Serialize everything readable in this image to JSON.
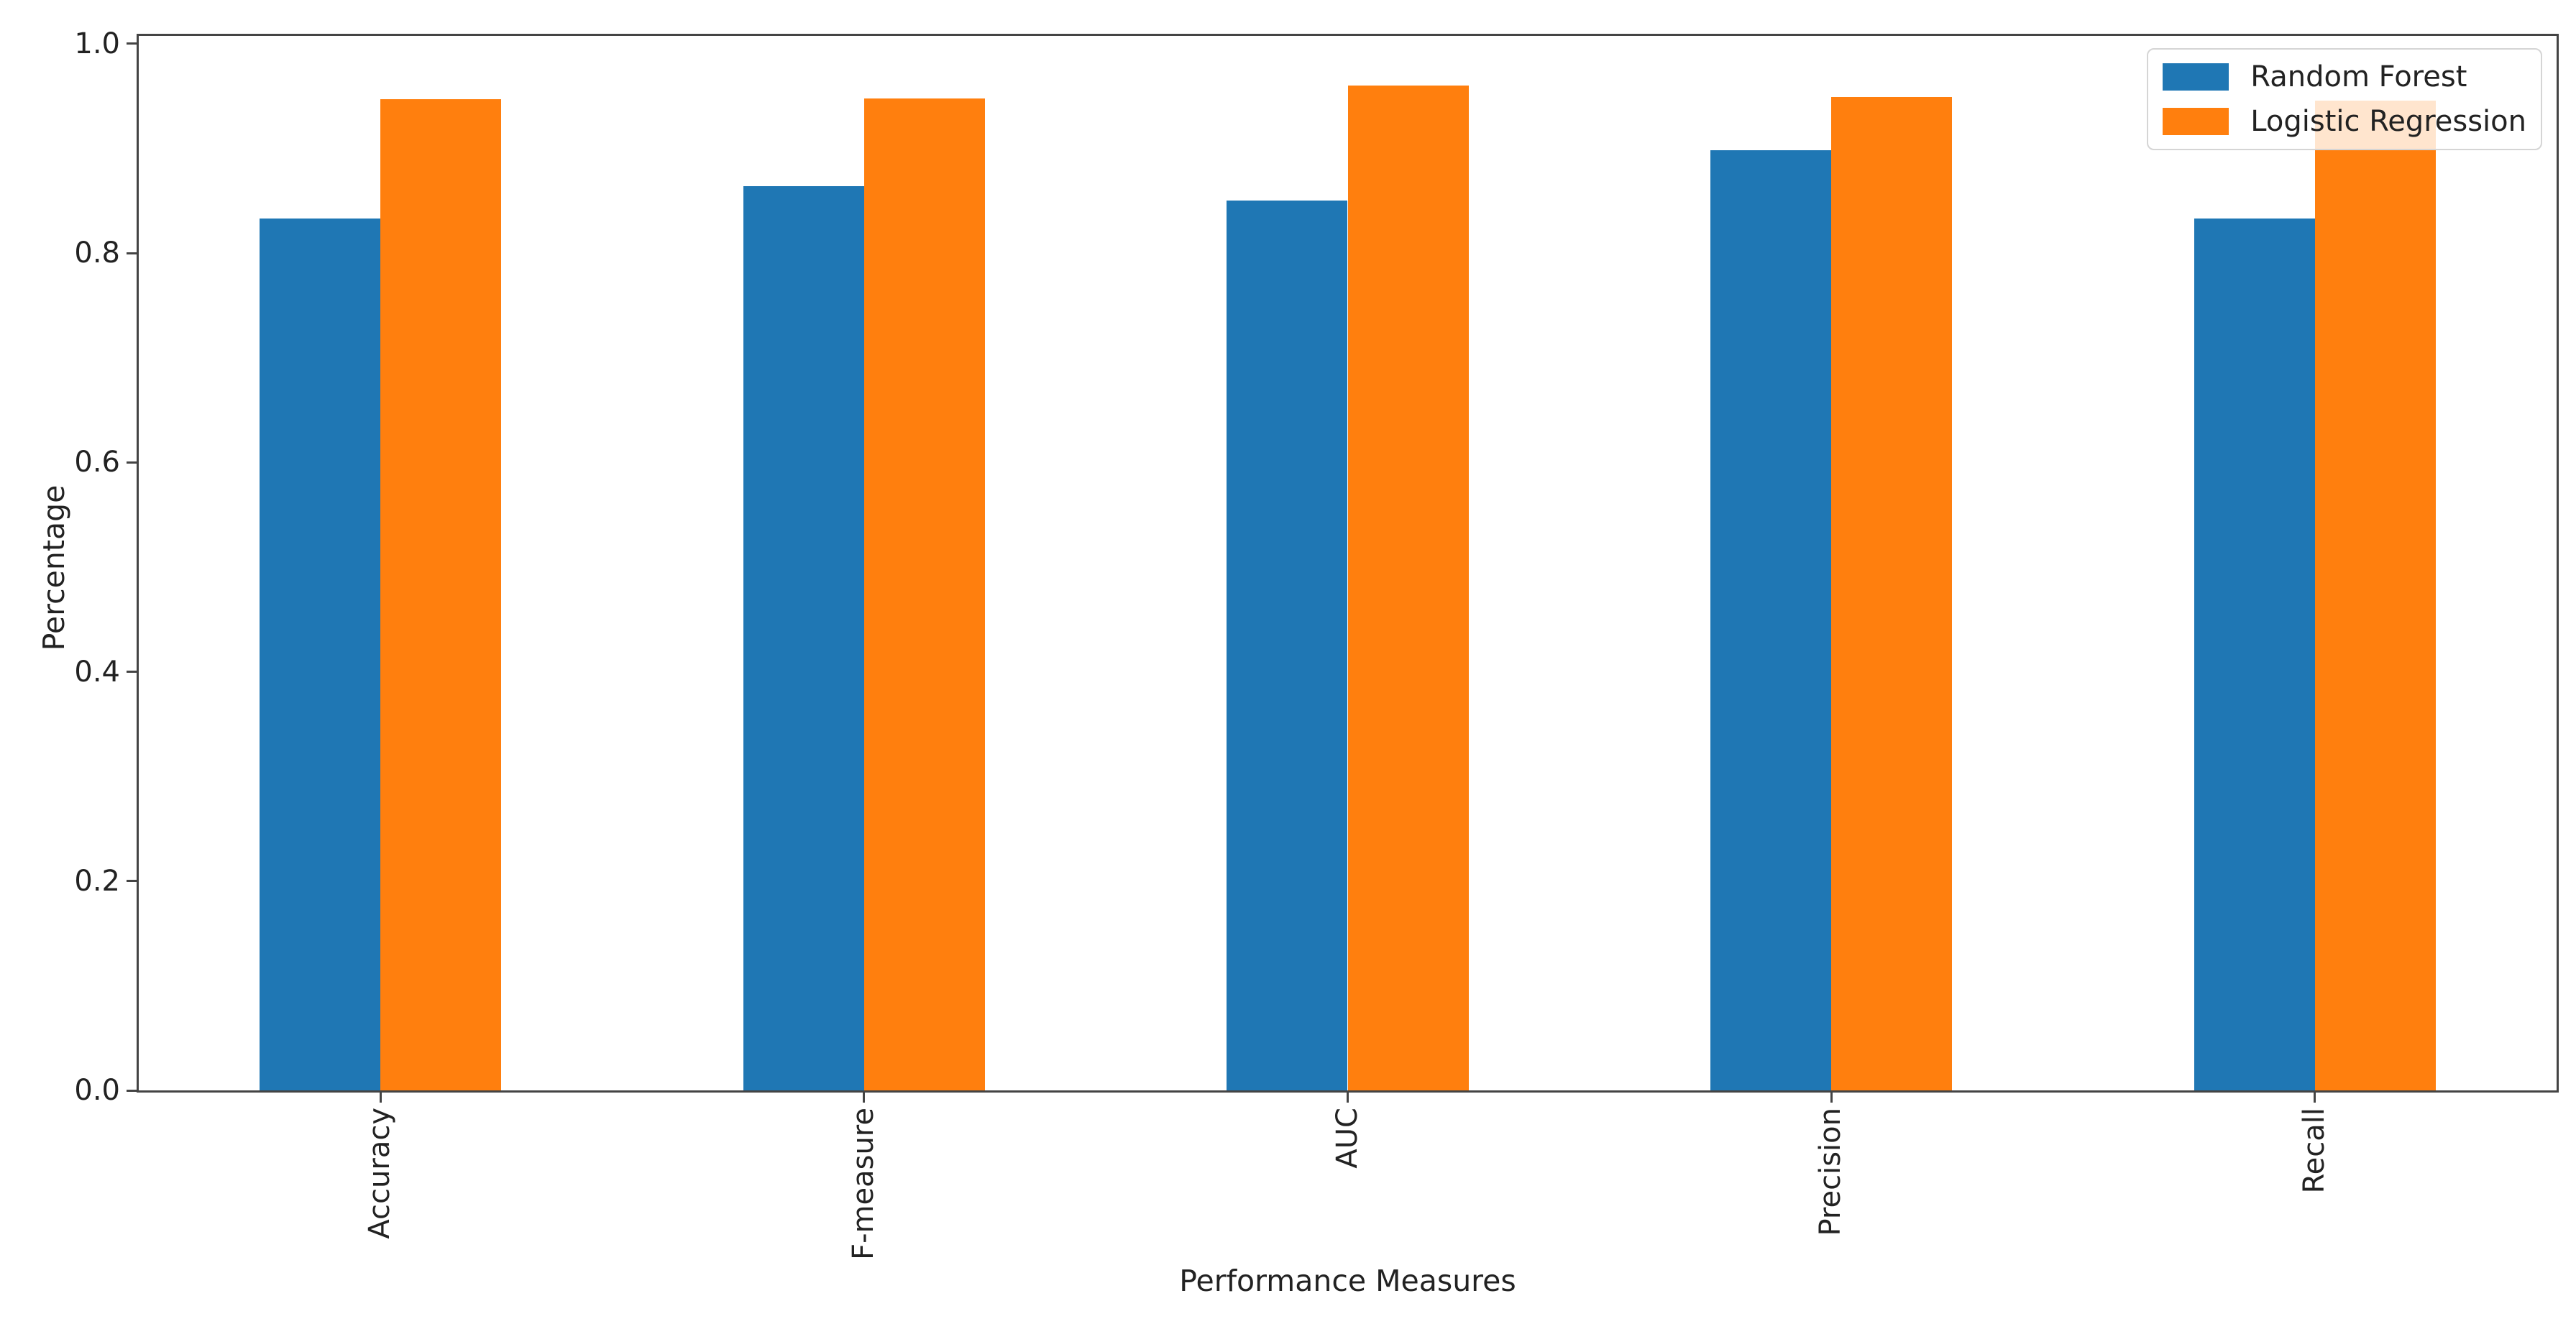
{
  "chart_data": {
    "type": "bar",
    "categories": [
      "Accuracy",
      "F-measure",
      "AUC",
      "Precision",
      "Recall"
    ],
    "series": [
      {
        "name": "Random Forest",
        "color": "#1f77b4",
        "values": [
          0.833,
          0.864,
          0.85,
          0.898,
          0.833
        ]
      },
      {
        "name": "Logistic Regression",
        "color": "#ff7f0e",
        "values": [
          0.947,
          0.948,
          0.96,
          0.949,
          0.946
        ]
      }
    ],
    "title": "",
    "xlabel": "Performance Measures",
    "ylabel": "Percentage",
    "yticks": [
      "0.0",
      "0.2",
      "0.4",
      "0.6",
      "0.8",
      "1.0"
    ],
    "ylim": [
      0,
      1.0075
    ],
    "grid": false,
    "legend_position": "upper right",
    "bar_width_frac": 0.25,
    "xtick_rotation": 90,
    "axis_color": "#444444",
    "legend_border_color": "#d5d5d5"
  }
}
